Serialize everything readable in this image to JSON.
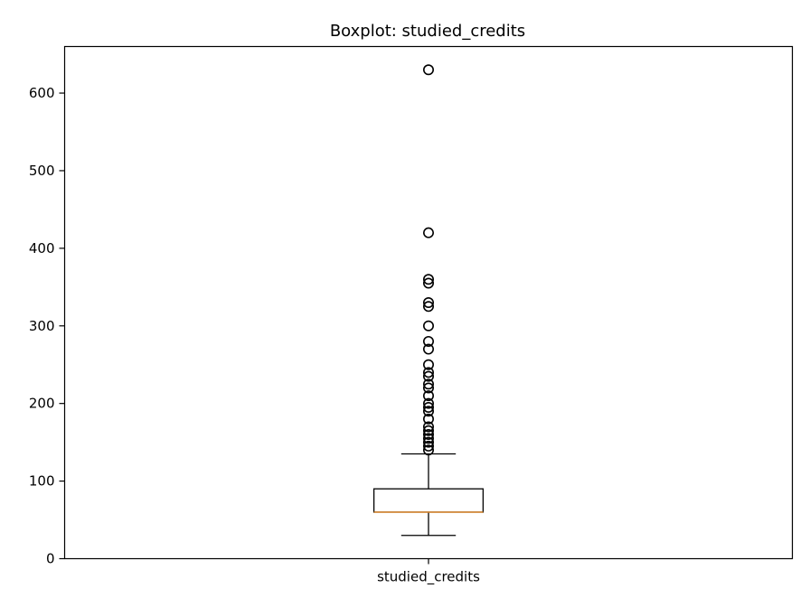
{
  "chart_data": {
    "type": "boxplot",
    "title": "Boxplot: studied_credits",
    "xlabel": "",
    "ylabel": "",
    "ylim": [
      0,
      660
    ],
    "yticks": [
      0,
      100,
      200,
      300,
      400,
      500,
      600
    ],
    "categories": [
      "studied_credits"
    ],
    "boxes": [
      {
        "category": "studied_credits",
        "whisker_low": 30,
        "q1": 60,
        "median": 60,
        "q3": 90,
        "whisker_high": 135,
        "outliers": [
          140,
          145,
          150,
          155,
          160,
          165,
          170,
          180,
          190,
          195,
          200,
          210,
          220,
          225,
          235,
          240,
          250,
          270,
          280,
          300,
          325,
          330,
          355,
          360,
          420,
          630
        ]
      }
    ],
    "colors": {
      "box": "#000000",
      "median": "#e08a2c",
      "whisker": "#000000",
      "outlier": "#000000"
    },
    "grid": false
  }
}
